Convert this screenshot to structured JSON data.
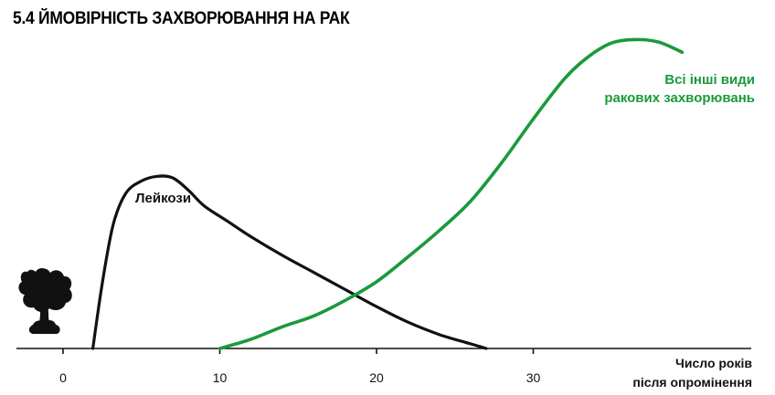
{
  "title": "5.4 ЙМОВІРНІСТЬ ЗАХВОРЮВАННЯ НА РАК",
  "chart_data": {
    "type": "line",
    "title": "5.4 ЙМОВІРНІСТЬ ЗАХВОРЮВАННЯ НА РАК",
    "xlabel_lines": [
      "Число років",
      "після опромінення"
    ],
    "ylabel": "",
    "xlim": [
      -4,
      44
    ],
    "ylim": [
      0,
      100
    ],
    "xticks": [
      0,
      10,
      20,
      30
    ],
    "grid": false,
    "legend": "none",
    "colors": {
      "leukemia": "#111111",
      "other": "#1a9a3c",
      "axis": "#111111"
    },
    "series": [
      {
        "id": "leukemia",
        "name": "Лейкози",
        "label_lines": [
          "Лейкози"
        ],
        "x": [
          1.9,
          2.5,
          3.2,
          4.0,
          5.0,
          6.0,
          7.0,
          8.0,
          9.0,
          10.5,
          12.0,
          14.0,
          16.0,
          18.0,
          20.0,
          22.0,
          24.0,
          26.0,
          27.0
        ],
        "y": [
          0,
          21,
          40,
          50,
          54,
          55.5,
          55,
          51,
          46,
          41,
          36,
          30,
          24.5,
          19,
          13.5,
          8.5,
          4.5,
          1.5,
          0
        ]
      },
      {
        "id": "other",
        "name": "Всі інші види раковових захворювань",
        "label_lines": [
          "Всі інші види",
          "ракових захворювань"
        ],
        "x": [
          10.0,
          12.0,
          14.0,
          16.0,
          18.0,
          20.0,
          22.0,
          24.0,
          26.0,
          28.0,
          30.0,
          32.0,
          33.5,
          35.0,
          36.5,
          38.0,
          39.5
        ],
        "y": [
          0,
          3,
          7,
          10.5,
          15.5,
          21.5,
          29.5,
          38,
          47.5,
          60,
          74,
          87,
          94,
          98.5,
          99.6,
          98.8,
          95.5
        ]
      }
    ]
  }
}
